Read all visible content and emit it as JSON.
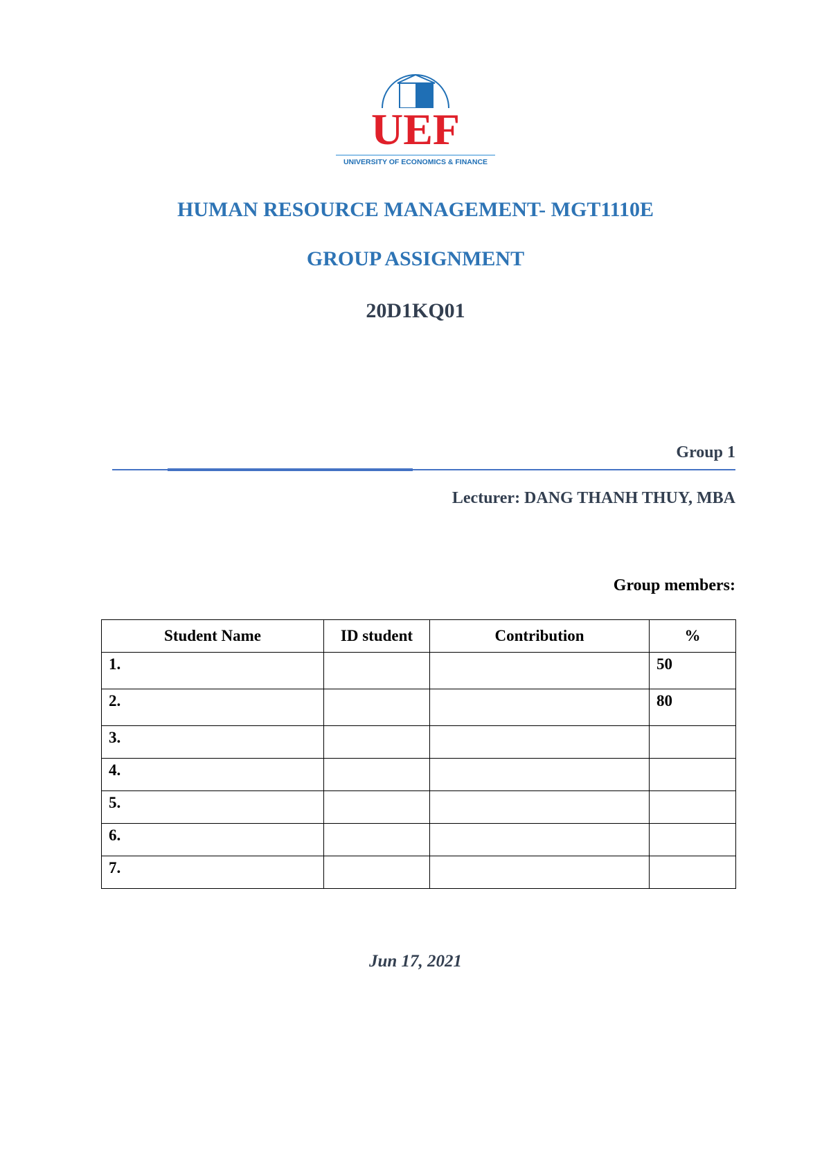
{
  "logo": {
    "text": "UEF",
    "subtitle": "UNIVERSITY OF ECONOMICS & FINANCE",
    "colors": {
      "red": "#e0202a",
      "blue": "#1f6fb5"
    }
  },
  "title": "HUMAN RESOURCE MANAGEMENT- MGT1110E",
  "subtitle": "GROUP ASSIGNMENT",
  "class_code": "20D1KQ01",
  "group": "Group 1",
  "lecturer": "Lecturer: DANG THANH THUY, MBA",
  "members_label": "Group members:",
  "table": {
    "headers": [
      "Student Name",
      "ID student",
      "Contribution",
      "%"
    ],
    "rows": [
      {
        "no": "1.",
        "id": "",
        "contribution": "",
        "percent": "50"
      },
      {
        "no": "2.",
        "id": "",
        "contribution": "",
        "percent": "80"
      },
      {
        "no": "3.",
        "id": "",
        "contribution": "",
        "percent": ""
      },
      {
        "no": "4.",
        "id": "",
        "contribution": "",
        "percent": ""
      },
      {
        "no": "5.",
        "id": "",
        "contribution": "",
        "percent": ""
      },
      {
        "no": "6.",
        "id": "",
        "contribution": "",
        "percent": ""
      },
      {
        "no": "7.",
        "id": "",
        "contribution": "",
        "percent": ""
      }
    ]
  },
  "date": "Jun 17, 2021",
  "colors": {
    "heading": "#2e74b5",
    "text": "#333f50",
    "rule": "#4472c4"
  }
}
